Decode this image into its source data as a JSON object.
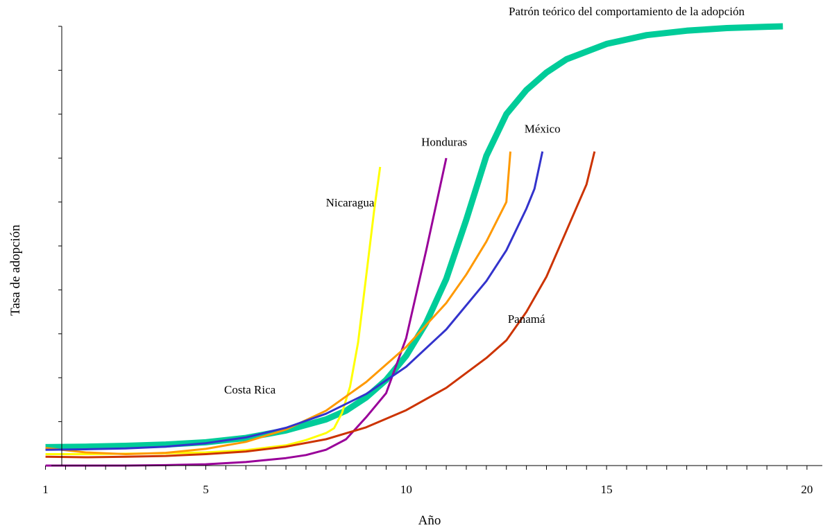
{
  "chart_data": {
    "type": "line",
    "title": "",
    "xlabel": "Año",
    "ylabel": "Tasa de adopción",
    "xlim": [
      0.8,
      20.4
    ],
    "ylim": [
      0,
      100
    ],
    "x_ticks": [
      1,
      5,
      10,
      15,
      20
    ],
    "x_minor_tick_step": 0.5,
    "y_tick_count": 10,
    "grid": false,
    "series": [
      {
        "name": "Patrón teórico del comportamiento de la adopción",
        "color": "#00CC99",
        "line": "thick",
        "points": [
          [
            1,
            4.2
          ],
          [
            2,
            4.3
          ],
          [
            3,
            4.5
          ],
          [
            4,
            4.8
          ],
          [
            5,
            5.3
          ],
          [
            6,
            6.3
          ],
          [
            7,
            8.0
          ],
          [
            8,
            10.5
          ],
          [
            8.5,
            12.5
          ],
          [
            9,
            15.5
          ],
          [
            9.5,
            19.5
          ],
          [
            10,
            25.0
          ],
          [
            10.5,
            32.5
          ],
          [
            11,
            42.5
          ],
          [
            11.5,
            56.0
          ],
          [
            12,
            70.5
          ],
          [
            12.5,
            80.0
          ],
          [
            13,
            85.5
          ],
          [
            13.5,
            89.5
          ],
          [
            14,
            92.5
          ],
          [
            15,
            96.0
          ],
          [
            16,
            98.0
          ],
          [
            17,
            99.0
          ],
          [
            18,
            99.6
          ],
          [
            19,
            99.9
          ],
          [
            19.4,
            100.0
          ]
        ]
      },
      {
        "name": "Nicaragua",
        "color": "#FFFF00",
        "line": "normal",
        "points": [
          [
            1,
            2.6
          ],
          [
            2,
            2.6
          ],
          [
            3,
            2.7
          ],
          [
            4,
            2.8
          ],
          [
            5,
            3.0
          ],
          [
            6,
            3.5
          ],
          [
            7,
            4.6
          ],
          [
            7.5,
            5.8
          ],
          [
            8,
            7.4
          ],
          [
            8.2,
            8.5
          ],
          [
            8.4,
            12.0
          ],
          [
            8.6,
            18.0
          ],
          [
            8.8,
            28.0
          ],
          [
            9,
            43.0
          ],
          [
            9.2,
            58.0
          ],
          [
            9.35,
            68.0
          ]
        ]
      },
      {
        "name": "Honduras",
        "color": "#990099",
        "line": "normal",
        "points": [
          [
            1,
            0
          ],
          [
            2,
            0
          ],
          [
            3,
            0
          ],
          [
            4,
            0.1
          ],
          [
            5,
            0.3
          ],
          [
            6,
            0.8
          ],
          [
            7,
            1.7
          ],
          [
            7.5,
            2.4
          ],
          [
            8,
            3.6
          ],
          [
            8.5,
            6.0
          ],
          [
            9,
            11.0
          ],
          [
            9.5,
            16.5
          ],
          [
            10,
            29.0
          ],
          [
            10.5,
            49.0
          ],
          [
            11,
            70.0
          ]
        ]
      },
      {
        "name": "Costa Rica",
        "color": "#FF9900",
        "line": "normal",
        "points": [
          [
            1,
            4.0
          ],
          [
            2,
            3.0
          ],
          [
            3,
            2.6
          ],
          [
            4,
            2.9
          ],
          [
            5,
            3.8
          ],
          [
            6,
            5.4
          ],
          [
            7,
            8.2
          ],
          [
            8,
            12.5
          ],
          [
            9,
            19.0
          ],
          [
            10,
            27.0
          ],
          [
            11,
            37.0
          ],
          [
            11.5,
            43.5
          ],
          [
            12,
            51.0
          ],
          [
            12.5,
            60.0
          ],
          [
            12.6,
            71.5
          ]
        ]
      },
      {
        "name": "México",
        "color": "#3333CC",
        "line": "normal",
        "points": [
          [
            1,
            3.6
          ],
          [
            2,
            3.7
          ],
          [
            3,
            3.9
          ],
          [
            4,
            4.3
          ],
          [
            5,
            5.1
          ],
          [
            6,
            6.4
          ],
          [
            7,
            8.6
          ],
          [
            8,
            11.8
          ],
          [
            9,
            16.3
          ],
          [
            10,
            22.5
          ],
          [
            11,
            31.0
          ],
          [
            12,
            42.0
          ],
          [
            12.5,
            49.0
          ],
          [
            13,
            58.5
          ],
          [
            13.2,
            63.0
          ],
          [
            13.4,
            71.5
          ]
        ]
      },
      {
        "name": "Panamá",
        "color": "#CC3300",
        "line": "normal",
        "points": [
          [
            1,
            2.0
          ],
          [
            2,
            1.9
          ],
          [
            3,
            2.0
          ],
          [
            4,
            2.2
          ],
          [
            5,
            2.6
          ],
          [
            6,
            3.2
          ],
          [
            7,
            4.3
          ],
          [
            8,
            6.0
          ],
          [
            9,
            8.7
          ],
          [
            10,
            12.6
          ],
          [
            11,
            17.7
          ],
          [
            12,
            24.5
          ],
          [
            12.5,
            28.5
          ],
          [
            13,
            35.0
          ],
          [
            13.5,
            43.0
          ],
          [
            14,
            53.5
          ],
          [
            14.5,
            64.0
          ],
          [
            14.7,
            71.5
          ]
        ]
      }
    ],
    "annotations": [
      {
        "text": "Patrón teórico del comportamiento de la adopción",
        "x": 15.5,
        "y": 102.5,
        "series": "Patrón teórico del comportamiento de la adopción"
      },
      {
        "text": "Nicaragua",
        "x": 8.6,
        "y": 59.0,
        "series": "Nicaragua"
      },
      {
        "text": "Honduras",
        "x": 10.95,
        "y": 72.8,
        "series": "Honduras"
      },
      {
        "text": "México",
        "x": 13.4,
        "y": 75.8,
        "series": "México"
      },
      {
        "text": "Costa Rica",
        "x": 6.1,
        "y": 16.4,
        "series": "Costa Rica"
      },
      {
        "text": "Panamá",
        "x": 13.0,
        "y": 32.5,
        "series": "Panamá"
      }
    ]
  }
}
